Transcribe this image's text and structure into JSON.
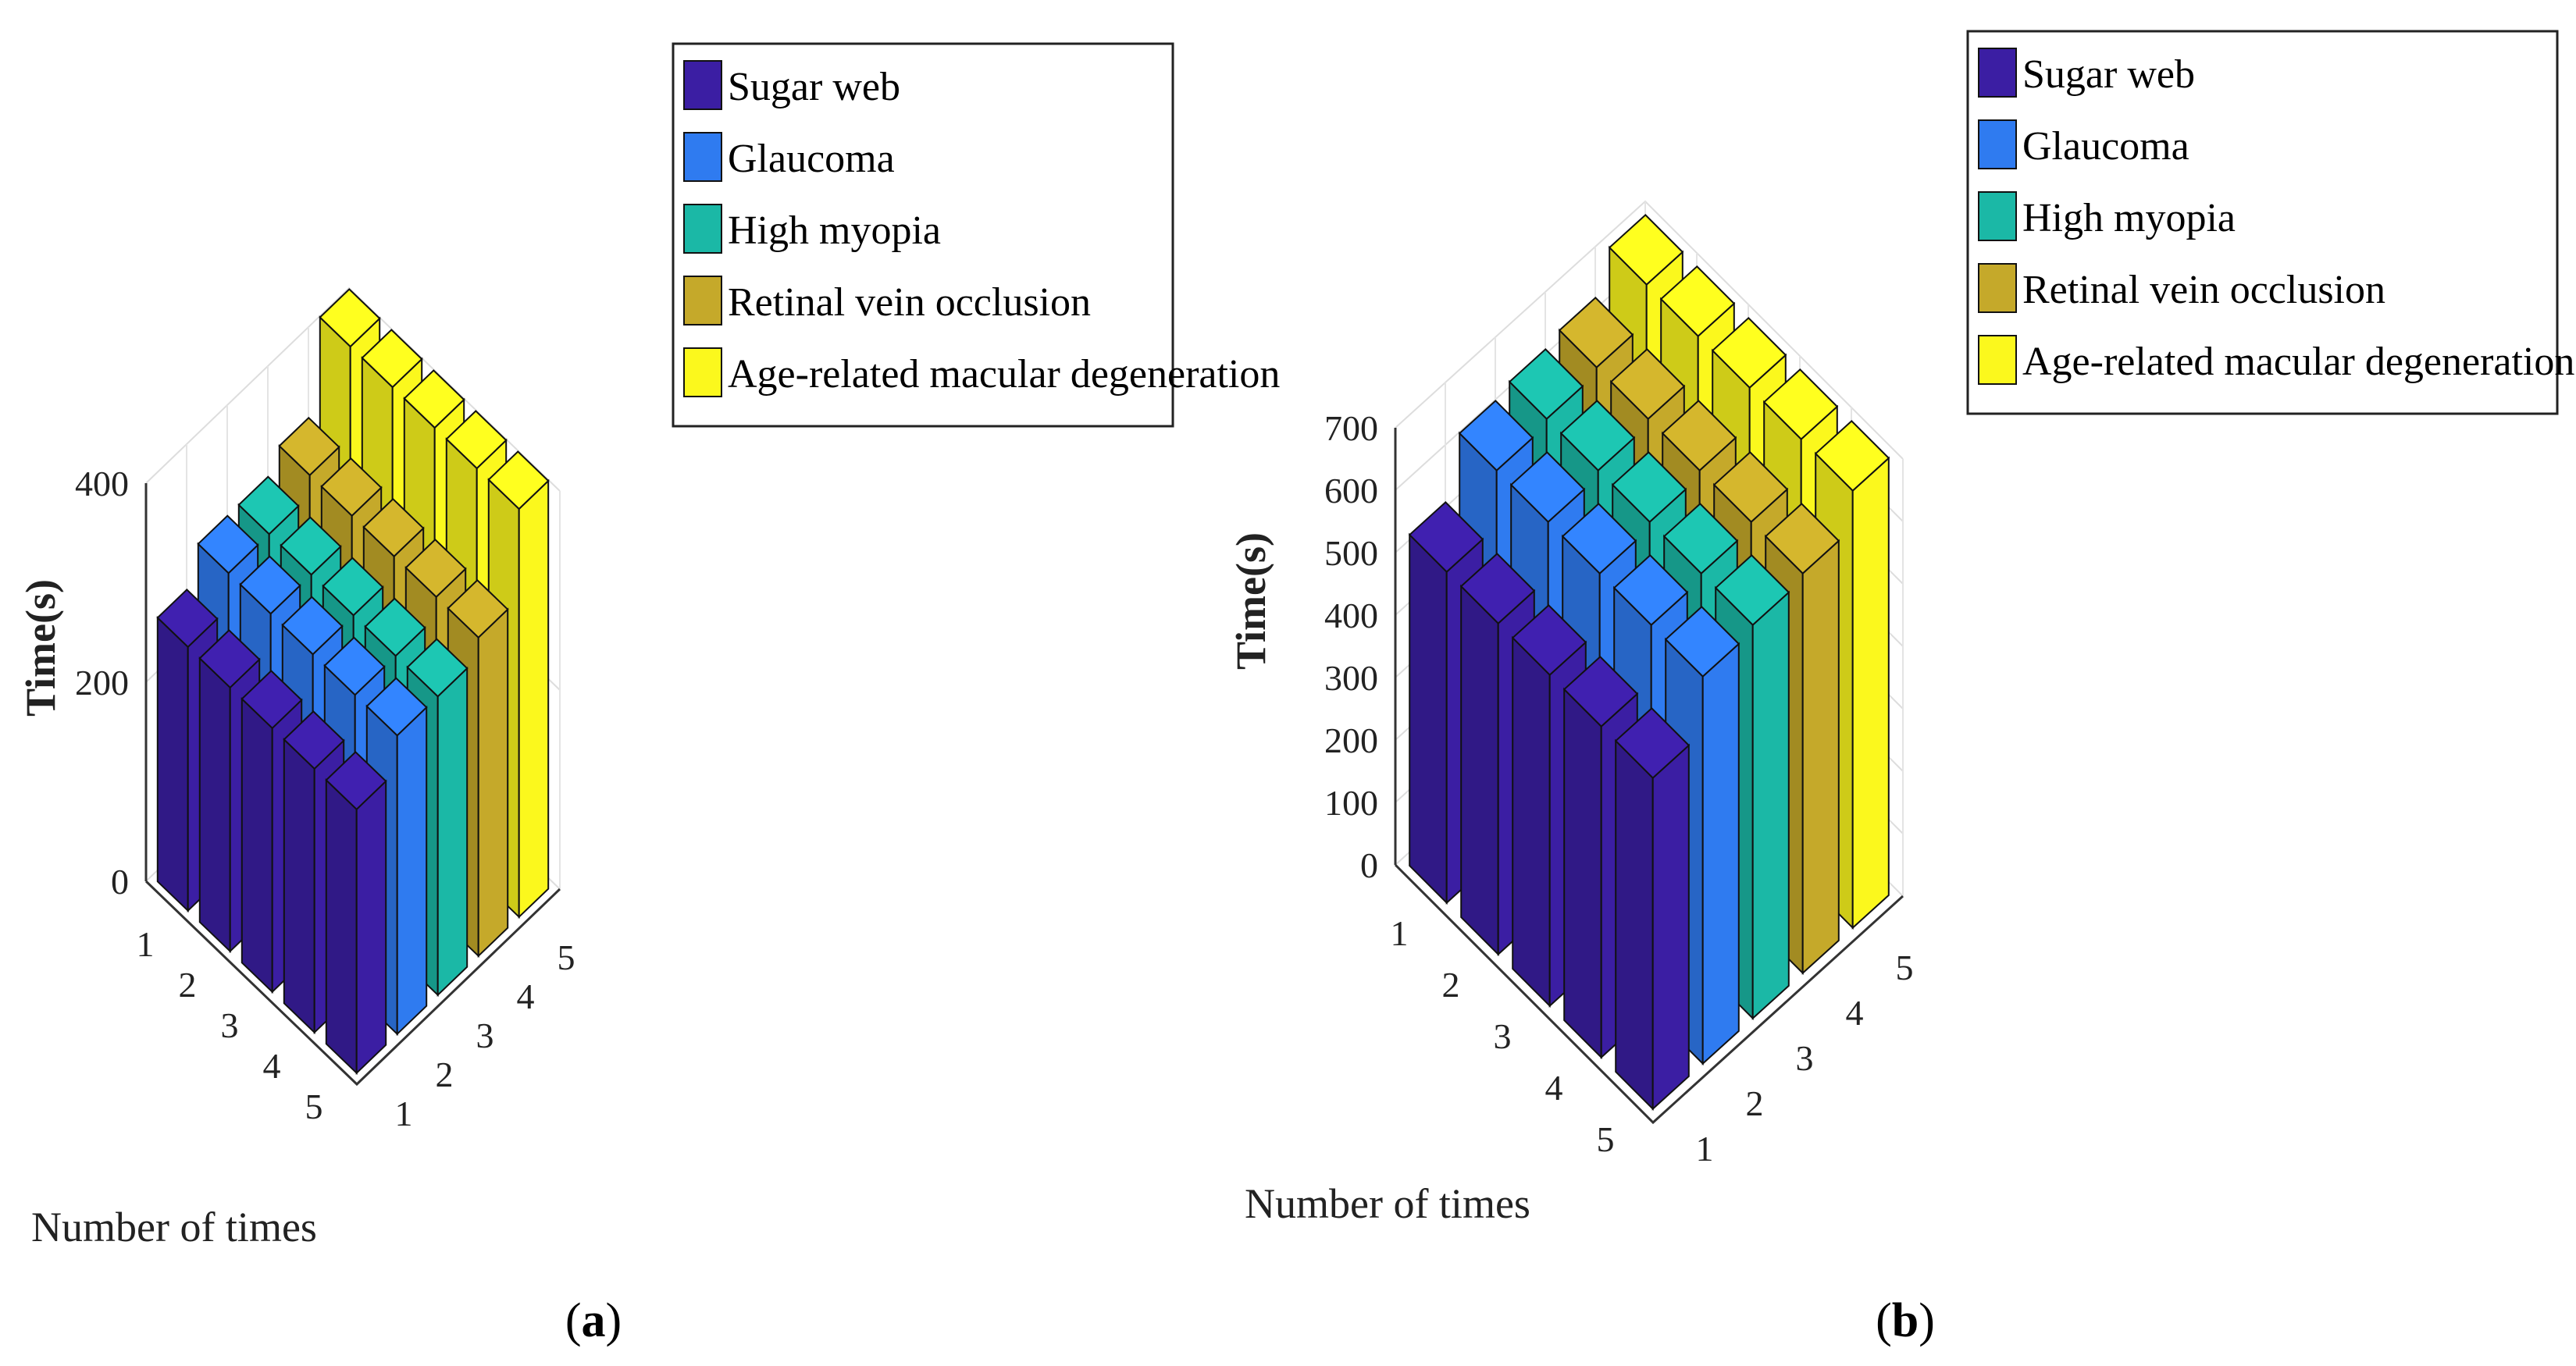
{
  "chart_data": [
    {
      "type": "bar3d",
      "panel_label": "a",
      "zlabel": "Time(s)",
      "xlabel": "Number of times",
      "zlim": [
        0,
        400
      ],
      "z_ticks": [
        "0",
        "200",
        "400"
      ],
      "x_ticks": [
        "1",
        "2",
        "3",
        "4",
        "5"
      ],
      "y_ticks": [
        "1",
        "2",
        "3",
        "4",
        "5"
      ],
      "series": [
        {
          "name": "Sugar web",
          "color": "#3b1ea3",
          "values": [
            265,
            265,
            265,
            265,
            265
          ]
        },
        {
          "name": "Glaucoma",
          "color": "#2f7bf0",
          "values": [
            300,
            300,
            300,
            300,
            300
          ]
        },
        {
          "name": "High myopia",
          "color": "#1bb8a6",
          "values": [
            300,
            300,
            300,
            300,
            300
          ]
        },
        {
          "name": "Retinal vein occlusion",
          "color": "#c5a92a",
          "values": [
            320,
            320,
            320,
            320,
            320
          ]
        },
        {
          "name": "Age-related macular degeneration",
          "color": "#fbf81d",
          "values": [
            410,
            410,
            410,
            410,
            410
          ]
        }
      ]
    },
    {
      "type": "bar3d",
      "panel_label": "b",
      "zlabel": "Time(s)",
      "xlabel": "Number of times",
      "zlim": [
        0,
        700
      ],
      "z_ticks": [
        "0",
        "100",
        "200",
        "300",
        "400",
        "500",
        "600",
        "700"
      ],
      "x_ticks": [
        "1",
        "2",
        "3",
        "4",
        "5"
      ],
      "y_ticks": [
        "1",
        "2",
        "3",
        "4",
        "5"
      ],
      "series": [
        {
          "name": "Sugar web",
          "color": "#3b1ea3",
          "values": [
            530,
            530,
            530,
            530,
            530
          ]
        },
        {
          "name": "Glaucoma",
          "color": "#2f7bf0",
          "values": [
            620,
            620,
            620,
            620,
            620
          ]
        },
        {
          "name": "High myopia",
          "color": "#1bb8a6",
          "values": [
            630,
            630,
            630,
            630,
            630
          ]
        },
        {
          "name": "Retinal vein occlusion",
          "color": "#c5a92a",
          "values": [
            640,
            640,
            640,
            640,
            640
          ]
        },
        {
          "name": "Age-related macular degeneration",
          "color": "#fbf81d",
          "values": [
            700,
            700,
            700,
            700,
            700
          ]
        }
      ]
    }
  ]
}
